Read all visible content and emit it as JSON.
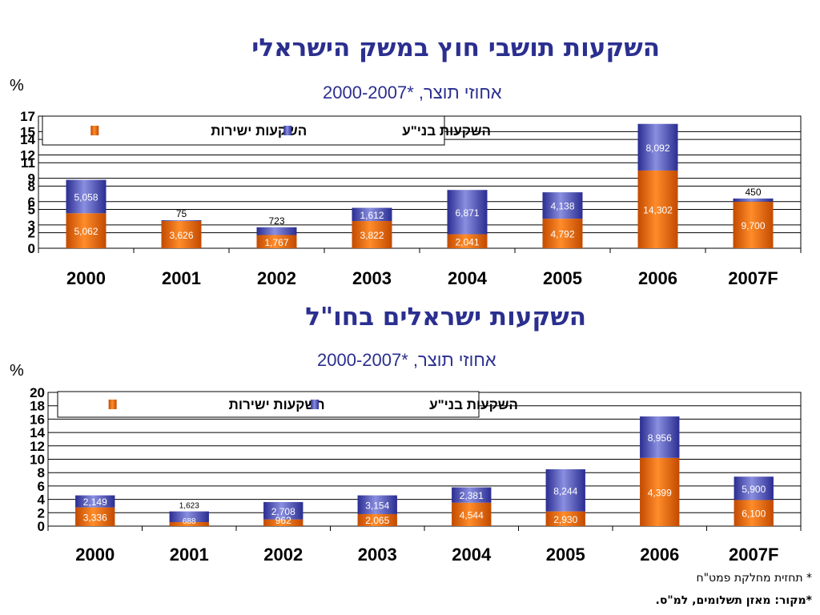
{
  "header1": {
    "title": "השקעות תושבי חוץ במשק הישראלי",
    "subtitle": "אחוזי תוצר, *2000-2007",
    "unit": "%"
  },
  "header2": {
    "title": "השקעות ישראלים בחו\"ל",
    "subtitle": "אחוזי תוצר, *2000-2007",
    "unit": "%"
  },
  "footnotes": {
    "forecast": "* תחזית מחלקת פמט\"ח",
    "source": "*מקור: מאזן תשלומים, למ\"ס."
  },
  "colors": {
    "direct": "#e06a12",
    "portfolio": "#3b3fa8",
    "axis_text": "#000000"
  },
  "chart_data": [
    {
      "type": "bar",
      "stacked": true,
      "title": "השקעות תושבי חוץ במשק הישראלי",
      "subtitle": "אחוזי תוצר, *2000-2007",
      "ylabel": "%",
      "categories": [
        "2000",
        "2001",
        "2002",
        "2003",
        "2004",
        "2005",
        "2006",
        "2007F"
      ],
      "y_ticks": [
        "0",
        "2",
        "3",
        "5",
        "6",
        "8",
        "9",
        "11",
        "12",
        "14",
        "15",
        "17"
      ],
      "ylim": [
        0,
        17
      ],
      "grid": true,
      "legend_position": "top-left",
      "series": [
        {
          "name": "השקעות ישירות",
          "values": [
            4.5,
            3.5,
            1.7,
            3.5,
            1.8,
            3.8,
            10.0,
            6.0
          ],
          "labels": [
            "5,062",
            "3,626",
            "1,767",
            "3,822",
            "2,041",
            "4,792",
            "14,302",
            "9,700"
          ]
        },
        {
          "name": "השקעות בני\"ע",
          "values": [
            4.3,
            0.1,
            1.0,
            1.7,
            5.7,
            3.4,
            6.0,
            0.4
          ],
          "labels": [
            "5,058",
            "75",
            "723",
            "1,612",
            "6,871",
            "4,138",
            "8,092",
            "450"
          ]
        }
      ]
    },
    {
      "type": "bar",
      "stacked": true,
      "title": "השקעות ישראלים בחו\"ל",
      "subtitle": "אחוזי תוצר, *2000-2007",
      "ylabel": "%",
      "categories": [
        "2000",
        "2001",
        "2002",
        "2003",
        "2004",
        "2005",
        "2006",
        "2007F"
      ],
      "y_ticks": [
        "0",
        "2",
        "4",
        "6",
        "8",
        "10",
        "12",
        "14",
        "16",
        "18",
        "20"
      ],
      "ylim": [
        0,
        20
      ],
      "grid": true,
      "legend_position": "top-left",
      "series": [
        {
          "name": "השקעות ישירות",
          "values": [
            2.8,
            0.6,
            1.0,
            1.8,
            3.5,
            2.2,
            10.2,
            3.9
          ],
          "labels": [
            "3,336",
            "688",
            "962",
            "2,065",
            "4,544",
            "2,930",
            "4,399",
            "6,100"
          ]
        },
        {
          "name": "השקעות בני\"ע",
          "values": [
            1.8,
            1.6,
            2.6,
            2.8,
            2.3,
            6.3,
            6.2,
            3.5
          ],
          "labels": [
            "2,149",
            "1,623",
            "2,708",
            "3,154",
            "2,381",
            "8,244",
            "8,956",
            "5,900"
          ]
        }
      ]
    }
  ]
}
